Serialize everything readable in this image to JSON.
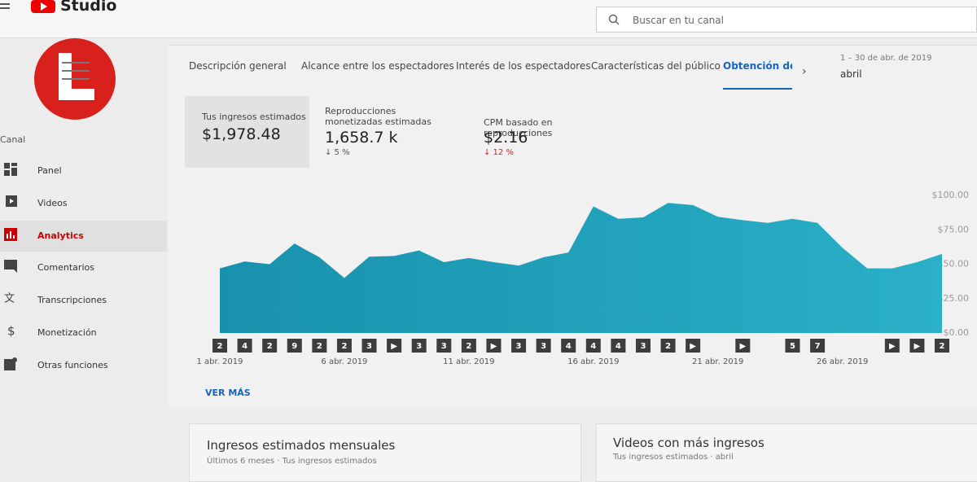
{
  "header": {
    "logo": "Studio",
    "search_placeholder": "Buscar en tu canal"
  },
  "sidebar": {
    "section": "Canal",
    "items": [
      "Panel",
      "Videos",
      "Analytics",
      "Comentarios",
      "Transcripciones",
      "Monetización",
      "Otras funciones"
    ],
    "active": "Analytics"
  },
  "tabs": {
    "items": [
      "Descripción general",
      "Alcance entre los espectadores",
      "Interés de los espectadores",
      "Características del público",
      "Obtención de ing"
    ],
    "date_range": "1 – 30 de abr. de 2019",
    "period": "abril"
  },
  "metrics": [
    {
      "label": "Tus ingresos estimados",
      "value": "$1,978.48"
    },
    {
      "label": "Reproducciones monetizadas estimadas",
      "value": "1,658.7 k",
      "change": "↓ 5 %"
    },
    {
      "label": "CPM basado en reproducciones",
      "value": "$2.16",
      "change": "↓ 12 %"
    }
  ],
  "chart_data": {
    "type": "area",
    "color": "#1f9fbb",
    "grid": false,
    "categories": [
      "1 abr. 2019",
      null,
      null,
      null,
      null,
      "6 abr. 2019",
      null,
      null,
      null,
      null,
      "11 abr. 2019",
      null,
      null,
      null,
      null,
      "16 abr. 2019",
      null,
      null,
      null,
      null,
      "21 abr. 2019",
      null,
      null,
      null,
      null,
      "26 abr. 2019",
      null,
      null,
      null,
      null
    ],
    "values": [
      47,
      52,
      50,
      65,
      55,
      40,
      55.5,
      56,
      60,
      51.5,
      54.5,
      51.5,
      49,
      55,
      58.5,
      92,
      83,
      84,
      94.5,
      93,
      84.5,
      82,
      80,
      83,
      80,
      62,
      47,
      47,
      51.5,
      57.5
    ],
    "markers": [
      "2",
      "4",
      "2",
      "9",
      "2",
      "2",
      "3",
      "▶",
      "3",
      "3",
      "2",
      "▶",
      "3",
      "3",
      "4",
      "4",
      "4",
      "3",
      "2",
      "▶",
      null,
      "▶",
      null,
      "5",
      "7",
      null,
      null,
      "▶",
      "▶",
      "2"
    ],
    "ylim": [
      0,
      100
    ],
    "yticks": [
      {
        "value": 0,
        "label": "$0.00"
      },
      {
        "value": 25,
        "label": "$25.00"
      },
      {
        "value": 50,
        "label": "$50.00"
      },
      {
        "value": 75,
        "label": "$75.00"
      },
      {
        "value": 100,
        "label": "$100.00"
      }
    ]
  },
  "more_button": "VER MÁS",
  "cards": [
    {
      "title": "Ingresos estimados mensuales",
      "subtitle": "Últimos 6 meses · Tus ingresos estimados"
    },
    {
      "title": "Videos con más ingresos",
      "subtitle": "Tus ingresos estimados · abril"
    }
  ]
}
